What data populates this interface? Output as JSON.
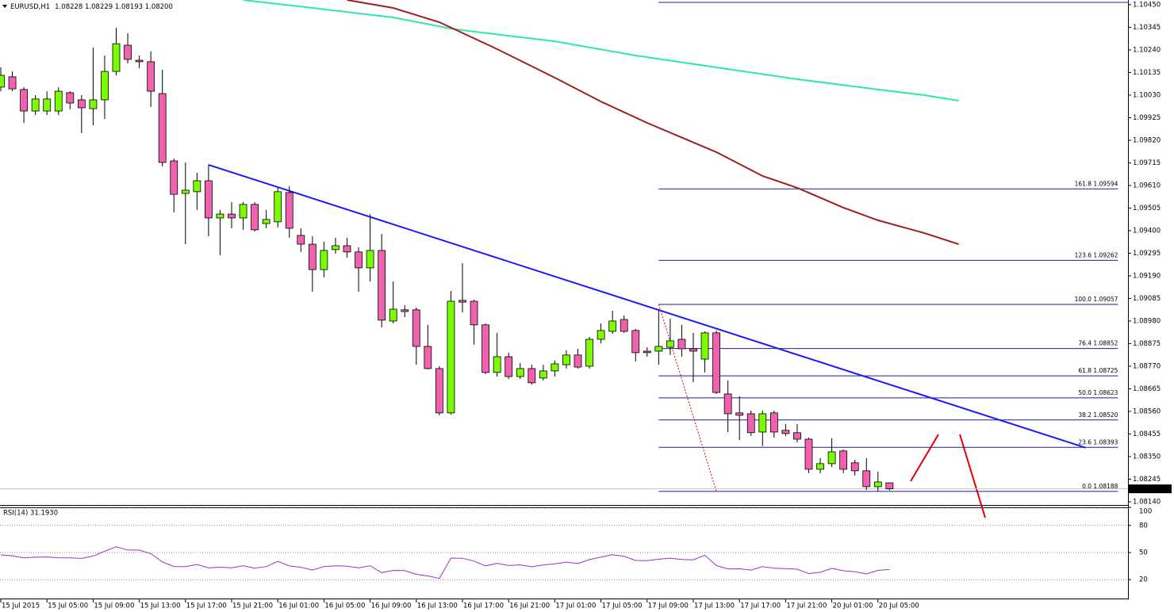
{
  "chart_data": [
    {
      "type": "candlestick",
      "title": "EURUSD,H1",
      "info": "1.08228 1.08229 1.08193 1.08200",
      "categories": [
        "15 Jul 2015",
        null,
        null,
        null,
        "15 Jul 05:00",
        null,
        null,
        null,
        "15 Jul 09:00",
        null,
        null,
        null,
        "15 Jul 13:00",
        null,
        null,
        null,
        "15 Jul 17:00",
        null,
        null,
        null,
        "15 Jul 21:00",
        null,
        null,
        null,
        "16 Jul 01:00",
        null,
        null,
        null,
        "16 Jul 05:00",
        null,
        null,
        null,
        "16 Jul 09:00",
        null,
        null,
        null,
        "16 Jul 13:00",
        null,
        null,
        null,
        "16 Jul 17:00",
        null,
        null,
        null,
        "16 Jul 21:00",
        null,
        null,
        null,
        "17 Jul 01:00",
        null,
        null,
        null,
        "17 Jul 05:00",
        null,
        null,
        null,
        "17 Jul 09:00",
        null,
        null,
        null,
        "17 Jul 13:00",
        null,
        null,
        null,
        "17 Jul 17:00",
        null,
        null,
        null,
        "17 Jul 21:00",
        null,
        null,
        null,
        "20 Jul 01:00",
        null,
        null,
        null,
        "20 Jul 05:00",
        null
      ],
      "open": [
        1.10067,
        1.10115,
        1.10056,
        1.09956,
        1.09956,
        1.09956,
        1.10041,
        1.10008,
        1.09967,
        1.10008,
        1.1014,
        1.10262,
        1.10192,
        1.10185,
        1.10037,
        1.09724,
        1.09573,
        1.09581,
        1.09632,
        1.09459,
        1.09477,
        1.09459,
        1.09522,
        1.09433,
        1.09441,
        1.09577,
        1.09378,
        1.09337,
        1.09219,
        1.09312,
        1.0933,
        1.09301,
        1.09227,
        1.09308,
        1.0898,
        1.09032,
        1.09032,
        1.08862,
        1.08759,
        1.08553,
        1.09076,
        1.09072,
        1.08962,
        1.08741,
        1.08814,
        1.08722,
        1.08759,
        1.08715,
        1.08748,
        1.08777,
        1.08822,
        1.0877,
        1.08895,
        1.08932,
        1.08987,
        1.08936,
        1.0884,
        1.0884,
        1.08858,
        1.08895,
        1.08851,
        1.08803,
        1.08925,
        1.08641,
        1.08553,
        1.08549,
        1.08464,
        1.08553,
        1.08472,
        1.08461,
        1.08431,
        1.08291,
        1.08317,
        1.08376,
        1.08321,
        1.08284,
        1.0821,
        1.08228
      ],
      "high": [
        1.10159,
        1.1014,
        1.10067,
        1.1003,
        1.10048,
        1.10067,
        1.10048,
        1.1003,
        1.10251,
        1.10214,
        1.10343,
        1.10317,
        1.10214,
        1.10233,
        1.10148,
        1.09735,
        1.09717,
        1.09669,
        1.09706,
        1.09496,
        1.09533,
        1.09533,
        1.09533,
        1.09496,
        1.09599,
        1.09606,
        1.09411,
        1.09374,
        1.09348,
        1.09367,
        1.09367,
        1.09323,
        1.09477,
        1.09385,
        1.09164,
        1.09054,
        1.09043,
        1.08962,
        1.0877,
        1.0912,
        1.09249,
        1.09079,
        1.08969,
        1.08925,
        1.08833,
        1.08785,
        1.08777,
        1.08777,
        1.08796,
        1.08844,
        1.08851,
        1.08906,
        1.08969,
        1.09028,
        1.09006,
        1.08943,
        1.08858,
        1.09035,
        1.08991,
        1.08962,
        1.08925,
        1.08932,
        1.08936,
        1.08704,
        1.0863,
        1.08564,
        1.08564,
        1.08564,
        1.08501,
        1.08501,
        1.08438,
        1.08343,
        1.08435,
        1.08383,
        1.08335,
        1.08343,
        1.0828,
        1.08229
      ],
      "low": [
        1.10048,
        1.10048,
        1.09901,
        1.09938,
        1.09938,
        1.09938,
        1.09964,
        1.09853,
        1.0989,
        1.09919,
        1.10122,
        1.10177,
        1.10155,
        1.09975,
        1.09698,
        1.09485,
        1.09337,
        1.09496,
        1.09374,
        1.09286,
        1.09411,
        1.09404,
        1.09396,
        1.09411,
        1.09415,
        1.09367,
        1.09301,
        1.09116,
        1.09183,
        1.09293,
        1.09275,
        1.09116,
        1.09164,
        1.0895,
        1.08969,
        1.08998,
        1.08777,
        1.08755,
        1.08542,
        1.08545,
        1.0902,
        1.0887,
        1.08733,
        1.08722,
        1.08711,
        1.08711,
        1.08685,
        1.08704,
        1.08722,
        1.08759,
        1.08759,
        1.08759,
        1.08877,
        1.08921,
        1.08925,
        1.08792,
        1.08814,
        1.08777,
        1.08822,
        1.08814,
        1.08696,
        1.08741,
        1.08641,
        1.08464,
        1.08427,
        1.08446,
        1.08398,
        1.08438,
        1.08446,
        1.08416,
        1.08273,
        1.08273,
        1.08302,
        1.08273,
        1.08262,
        1.08195,
        1.08188,
        1.08193
      ],
      "close": [
        1.10122,
        1.10059,
        1.09956,
        1.10012,
        1.10012,
        1.10048,
        1.09993,
        1.09971,
        1.10008,
        1.1014,
        1.10269,
        1.10196,
        1.10185,
        1.10048,
        1.09717,
        1.09569,
        1.09588,
        1.09632,
        1.09459,
        1.09477,
        1.09459,
        1.09522,
        1.09404,
        1.09452,
        1.09581,
        1.09411,
        1.09337,
        1.09219,
        1.09308,
        1.0933,
        1.09301,
        1.09227,
        1.09308,
        1.08984,
        1.09035,
        1.09024,
        1.08862,
        1.08759,
        1.08553,
        1.09072,
        1.09068,
        1.08962,
        1.08741,
        1.08814,
        1.08722,
        1.08759,
        1.08693,
        1.08748,
        1.08781,
        1.08822,
        1.08766,
        1.08895,
        1.08936,
        1.0898,
        1.08932,
        1.08833,
        1.08833,
        1.08862,
        1.08888,
        1.08851,
        1.0884,
        1.08925,
        1.08648,
        1.08549,
        1.08542,
        1.08461,
        1.08549,
        1.08464,
        1.08457,
        1.08431,
        1.08291,
        1.08317,
        1.08372,
        1.08291,
        1.08284,
        1.0821,
        1.08232,
        1.082
      ],
      "up_color": "#7cfc00",
      "down_color": "#f062b0",
      "ylim": [
        1.08125,
        1.10472
      ],
      "yticks": [
        {
          "value": 1.1045,
          "label": "1.10450"
        },
        {
          "value": 1.10345,
          "label": "1.10345"
        },
        {
          "value": 1.1024,
          "label": "1.10240"
        },
        {
          "value": 1.10135,
          "label": "1.10135"
        },
        {
          "value": 1.1003,
          "label": "1.10030"
        },
        {
          "value": 1.09925,
          "label": "1.09925"
        },
        {
          "value": 1.0982,
          "label": "1.09820"
        },
        {
          "value": 1.09715,
          "label": "1.09715"
        },
        {
          "value": 1.0961,
          "label": "1.09610"
        },
        {
          "value": 1.09505,
          "label": "1.09505"
        },
        {
          "value": 1.094,
          "label": "1.09400"
        },
        {
          "value": 1.09295,
          "label": "1.09295"
        },
        {
          "value": 1.0919,
          "label": "1.09190"
        },
        {
          "value": 1.09085,
          "label": "1.09085"
        },
        {
          "value": 1.0898,
          "label": "1.08980"
        },
        {
          "value": 1.08875,
          "label": "1.08875"
        },
        {
          "value": 1.0877,
          "label": "1.08770"
        },
        {
          "value": 1.08665,
          "label": "1.08665"
        },
        {
          "value": 1.0856,
          "label": "1.08560"
        },
        {
          "value": 1.08455,
          "label": "1.08455"
        },
        {
          "value": 1.0835,
          "label": "1.08350"
        },
        {
          "value": 1.08245,
          "label": "1.08245"
        },
        {
          "value": 1.0814,
          "label": "1.08140"
        }
      ],
      "last_price": {
        "value": 1.082,
        "label": "1.08200"
      },
      "moving_averages": [
        {
          "color": "#30e8a0",
          "x": [
            21,
            27,
            34,
            39,
            41,
            48,
            55,
            62,
            69,
            76,
            80,
            83
          ],
          "values": [
            1.10472,
            1.10435,
            1.10391,
            1.10339,
            1.10325,
            1.1028,
            1.10214,
            1.10159,
            1.10104,
            1.10056,
            1.1003,
            1.10004
          ]
        },
        {
          "color": "#a01e1e",
          "x": [
            30,
            34,
            38,
            43,
            48,
            52,
            56,
            62,
            66,
            69,
            73,
            76,
            80,
            83
          ],
          "values": [
            1.10472,
            1.10435,
            1.10369,
            1.10244,
            1.10111,
            1.1,
            1.09901,
            1.09765,
            1.09654,
            1.09599,
            1.09507,
            1.09448,
            1.09389,
            1.09337
          ]
        }
      ],
      "trendline": {
        "color": "#1a1aff",
        "x": [
          18,
          94
        ],
        "values": [
          1.09706,
          1.08391
        ]
      },
      "projection": {
        "color": "#e00000",
        "x": [
          57,
          62
        ],
        "values": [
          1.09057,
          1.08188
        ]
      },
      "fib": {
        "color": "#1c1c9c",
        "x": [
          57,
          96.8
        ],
        "levels": [
          {
            "value": 1.09594,
            "label": "161.8 1.09594"
          },
          {
            "value": 1.09262,
            "label": "123.6 1.09262"
          },
          {
            "value": 1.09057,
            "label": "100.0 1.09057"
          },
          {
            "value": 1.08852,
            "label": "76.4 1.08852"
          },
          {
            "value": 1.08725,
            "label": "61.8 1.08725"
          },
          {
            "value": 1.08623,
            "label": "50.0 1.08623"
          },
          {
            "value": 1.0852,
            "label": "38.2 1.08520"
          },
          {
            "value": 1.08393,
            "label": "23.6 1.08393"
          },
          {
            "value": 1.08188,
            "label": "0.0 1.08188"
          }
        ]
      }
    },
    {
      "type": "line",
      "title": "RSI(14) 31.1930",
      "color": "#9932cc",
      "values": [
        47.4,
        46.5,
        44.0,
        44.8,
        45.1,
        44.2,
        44.0,
        43.5,
        46.1,
        51.5,
        56.3,
        52.8,
        52.6,
        48.8,
        39.6,
        34.6,
        34.4,
        36.8,
        33.0,
        33.8,
        33.2,
        35.4,
        32.7,
        34.5,
        40.2,
        35.2,
        33.7,
        30.6,
        34.5,
        35.3,
        34.9,
        33.2,
        35.4,
        27.8,
        30.2,
        30.0,
        25.9,
        24.1,
        21.4,
        43.9,
        43.7,
        40.5,
        35.3,
        38.1,
        35.6,
        36.4,
        34.2,
        36.3,
        37.5,
        39.4,
        37.8,
        42.2,
        45.0,
        47.6,
        45.8,
        41.2,
        41.0,
        42.6,
        43.8,
        42.3,
        41.9,
        47.0,
        35.6,
        31.9,
        32.0,
        30.6,
        34.4,
        32.7,
        32.3,
        31.6,
        26.7,
        28.2,
        32.5,
        29.8,
        28.9,
        26.3,
        30.3,
        31.193
      ],
      "ylim": [
        0,
        100
      ],
      "yticks": [
        100,
        80,
        50,
        20
      ]
    }
  ]
}
